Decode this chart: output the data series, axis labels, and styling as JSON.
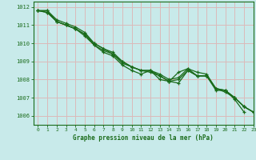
{
  "title": "Graphe pression niveau de la mer (hPa)",
  "background_color": "#c8eaea",
  "grid_color": "#dbbaba",
  "line_color": "#1a6b1a",
  "xlim": [
    -0.5,
    23
  ],
  "ylim": [
    1005.5,
    1012.3
  ],
  "xticks": [
    0,
    1,
    2,
    3,
    4,
    5,
    6,
    7,
    8,
    9,
    10,
    11,
    12,
    13,
    14,
    15,
    16,
    17,
    18,
    19,
    20,
    21,
    22,
    23
  ],
  "yticks": [
    1006,
    1007,
    1008,
    1009,
    1010,
    1011,
    1012
  ],
  "series": [
    [
      1011.8,
      1011.7,
      1011.2,
      1011.0,
      1010.8,
      1010.5,
      1009.9,
      1009.6,
      1009.4,
      1008.9,
      1008.7,
      1008.5,
      1008.5,
      1008.0,
      1007.9,
      1008.4,
      1008.6,
      1008.2,
      1008.2,
      1007.5,
      1007.4,
      1006.9,
      1006.2,
      null
    ],
    [
      1011.8,
      1011.7,
      1011.2,
      1011.0,
      1010.8,
      1010.4,
      1009.9,
      1009.5,
      1009.3,
      1008.8,
      1008.5,
      1008.3,
      1008.5,
      1008.2,
      1007.9,
      1008.0,
      1008.5,
      1008.2,
      1008.2,
      1007.4,
      1007.4,
      1007.0,
      1006.5,
      1006.2
    ],
    [
      1011.8,
      1011.8,
      1011.3,
      1011.1,
      1010.9,
      1010.6,
      1010.0,
      1009.7,
      1009.4,
      1009.0,
      1008.7,
      1008.5,
      1008.5,
      1008.3,
      1008.0,
      1008.1,
      1008.6,
      1008.4,
      1008.3,
      1007.5,
      1007.4,
      1007.0,
      1006.5,
      1006.2
    ],
    [
      1011.8,
      1011.8,
      1011.2,
      1011.0,
      1010.8,
      1010.5,
      1010.0,
      1009.7,
      1009.5,
      1009.0,
      1008.7,
      1008.5,
      1008.4,
      1008.2,
      1007.9,
      1007.8,
      1008.5,
      1008.2,
      1008.2,
      1007.5,
      1007.3,
      1007.0,
      1006.5,
      1006.2
    ]
  ]
}
